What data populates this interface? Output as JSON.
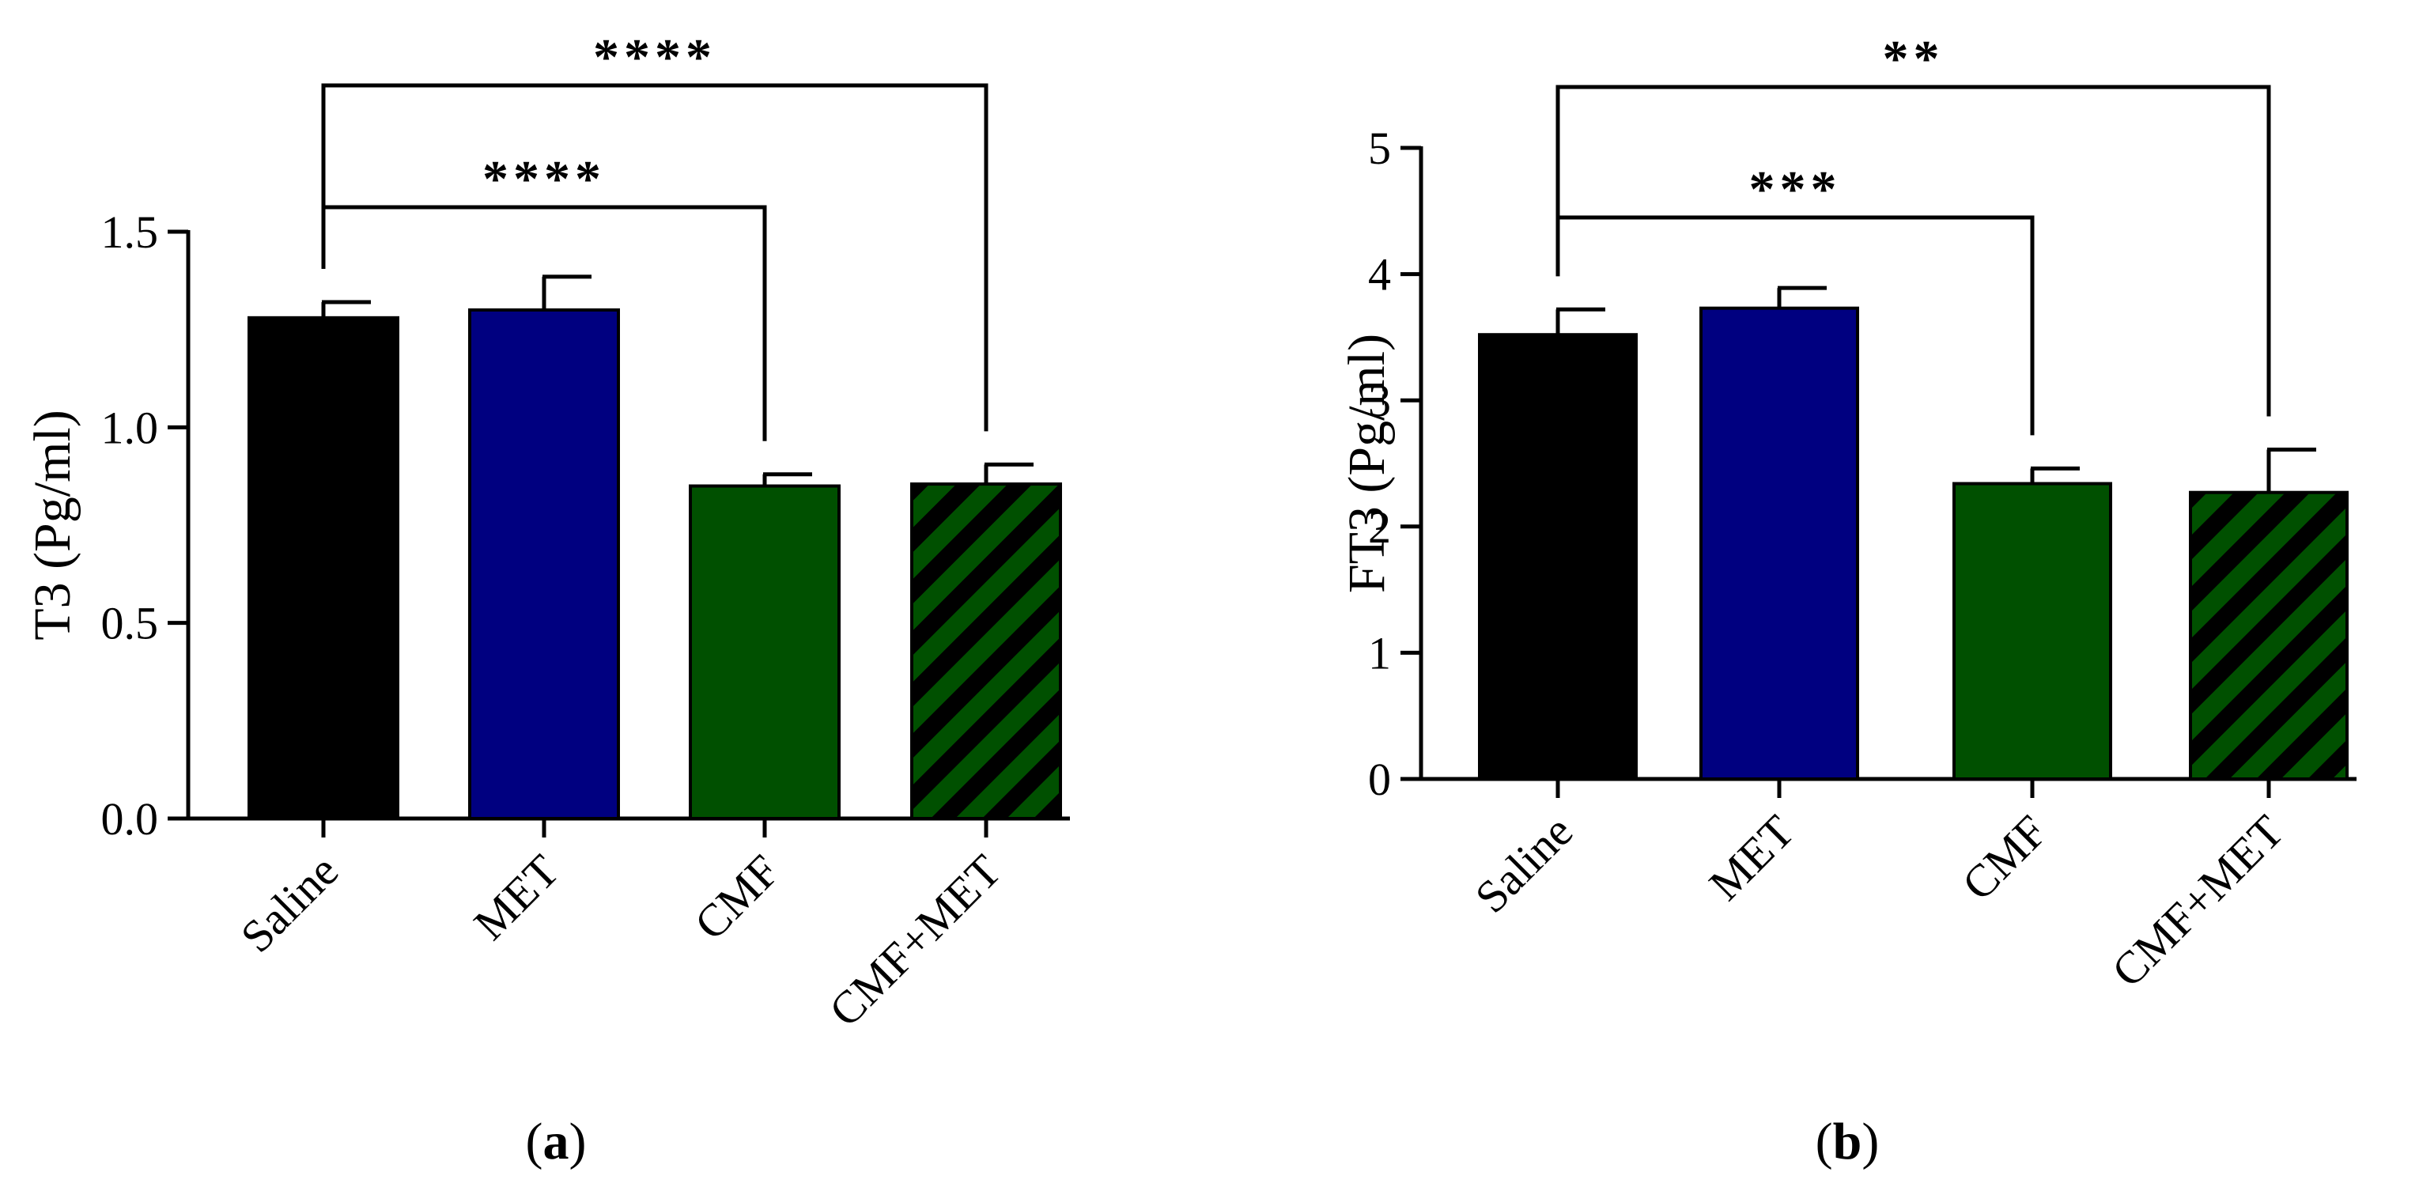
{
  "chart_data": [
    {
      "type": "bar",
      "panel_label": "a",
      "categories": [
        "Saline",
        "MET",
        "CMF",
        "CMF+MET"
      ],
      "values": [
        1.28,
        1.3,
        0.85,
        0.855
      ],
      "errors": [
        0.04,
        0.085,
        0.03,
        0.05
      ],
      "colors": [
        "#000000",
        "#000080",
        "#005000",
        "#005000"
      ],
      "hatched": [
        false,
        false,
        false,
        true
      ],
      "hatch_color": "#000000",
      "ylabel": "T3 (Pg/ml)",
      "ylim": [
        0,
        1.5
      ],
      "yticks": [
        "0.0",
        "0.5",
        "1.0",
        "1.5"
      ],
      "comparisons": [
        {
          "from": "Saline",
          "to": "CMF",
          "label": "****"
        },
        {
          "from": "Saline",
          "to": "CMF+MET",
          "label": "****"
        }
      ]
    },
    {
      "type": "bar",
      "panel_label": "b",
      "categories": [
        "Saline",
        "MET",
        "CMF",
        "CMF+MET"
      ],
      "values": [
        3.52,
        3.73,
        2.34,
        2.27
      ],
      "errors": [
        0.2,
        0.16,
        0.12,
        0.34
      ],
      "colors": [
        "#000000",
        "#000080",
        "#005000",
        "#005000"
      ],
      "hatched": [
        false,
        false,
        false,
        true
      ],
      "hatch_color": "#000000",
      "ylabel": "FT3 (Pg/ml)",
      "ylim": [
        0,
        5
      ],
      "yticks": [
        "0",
        "1",
        "2",
        "3",
        "4",
        "5"
      ],
      "comparisons": [
        {
          "from": "Saline",
          "to": "CMF",
          "label": "***"
        },
        {
          "from": "Saline",
          "to": "CMF+MET",
          "label": "**"
        }
      ]
    }
  ]
}
